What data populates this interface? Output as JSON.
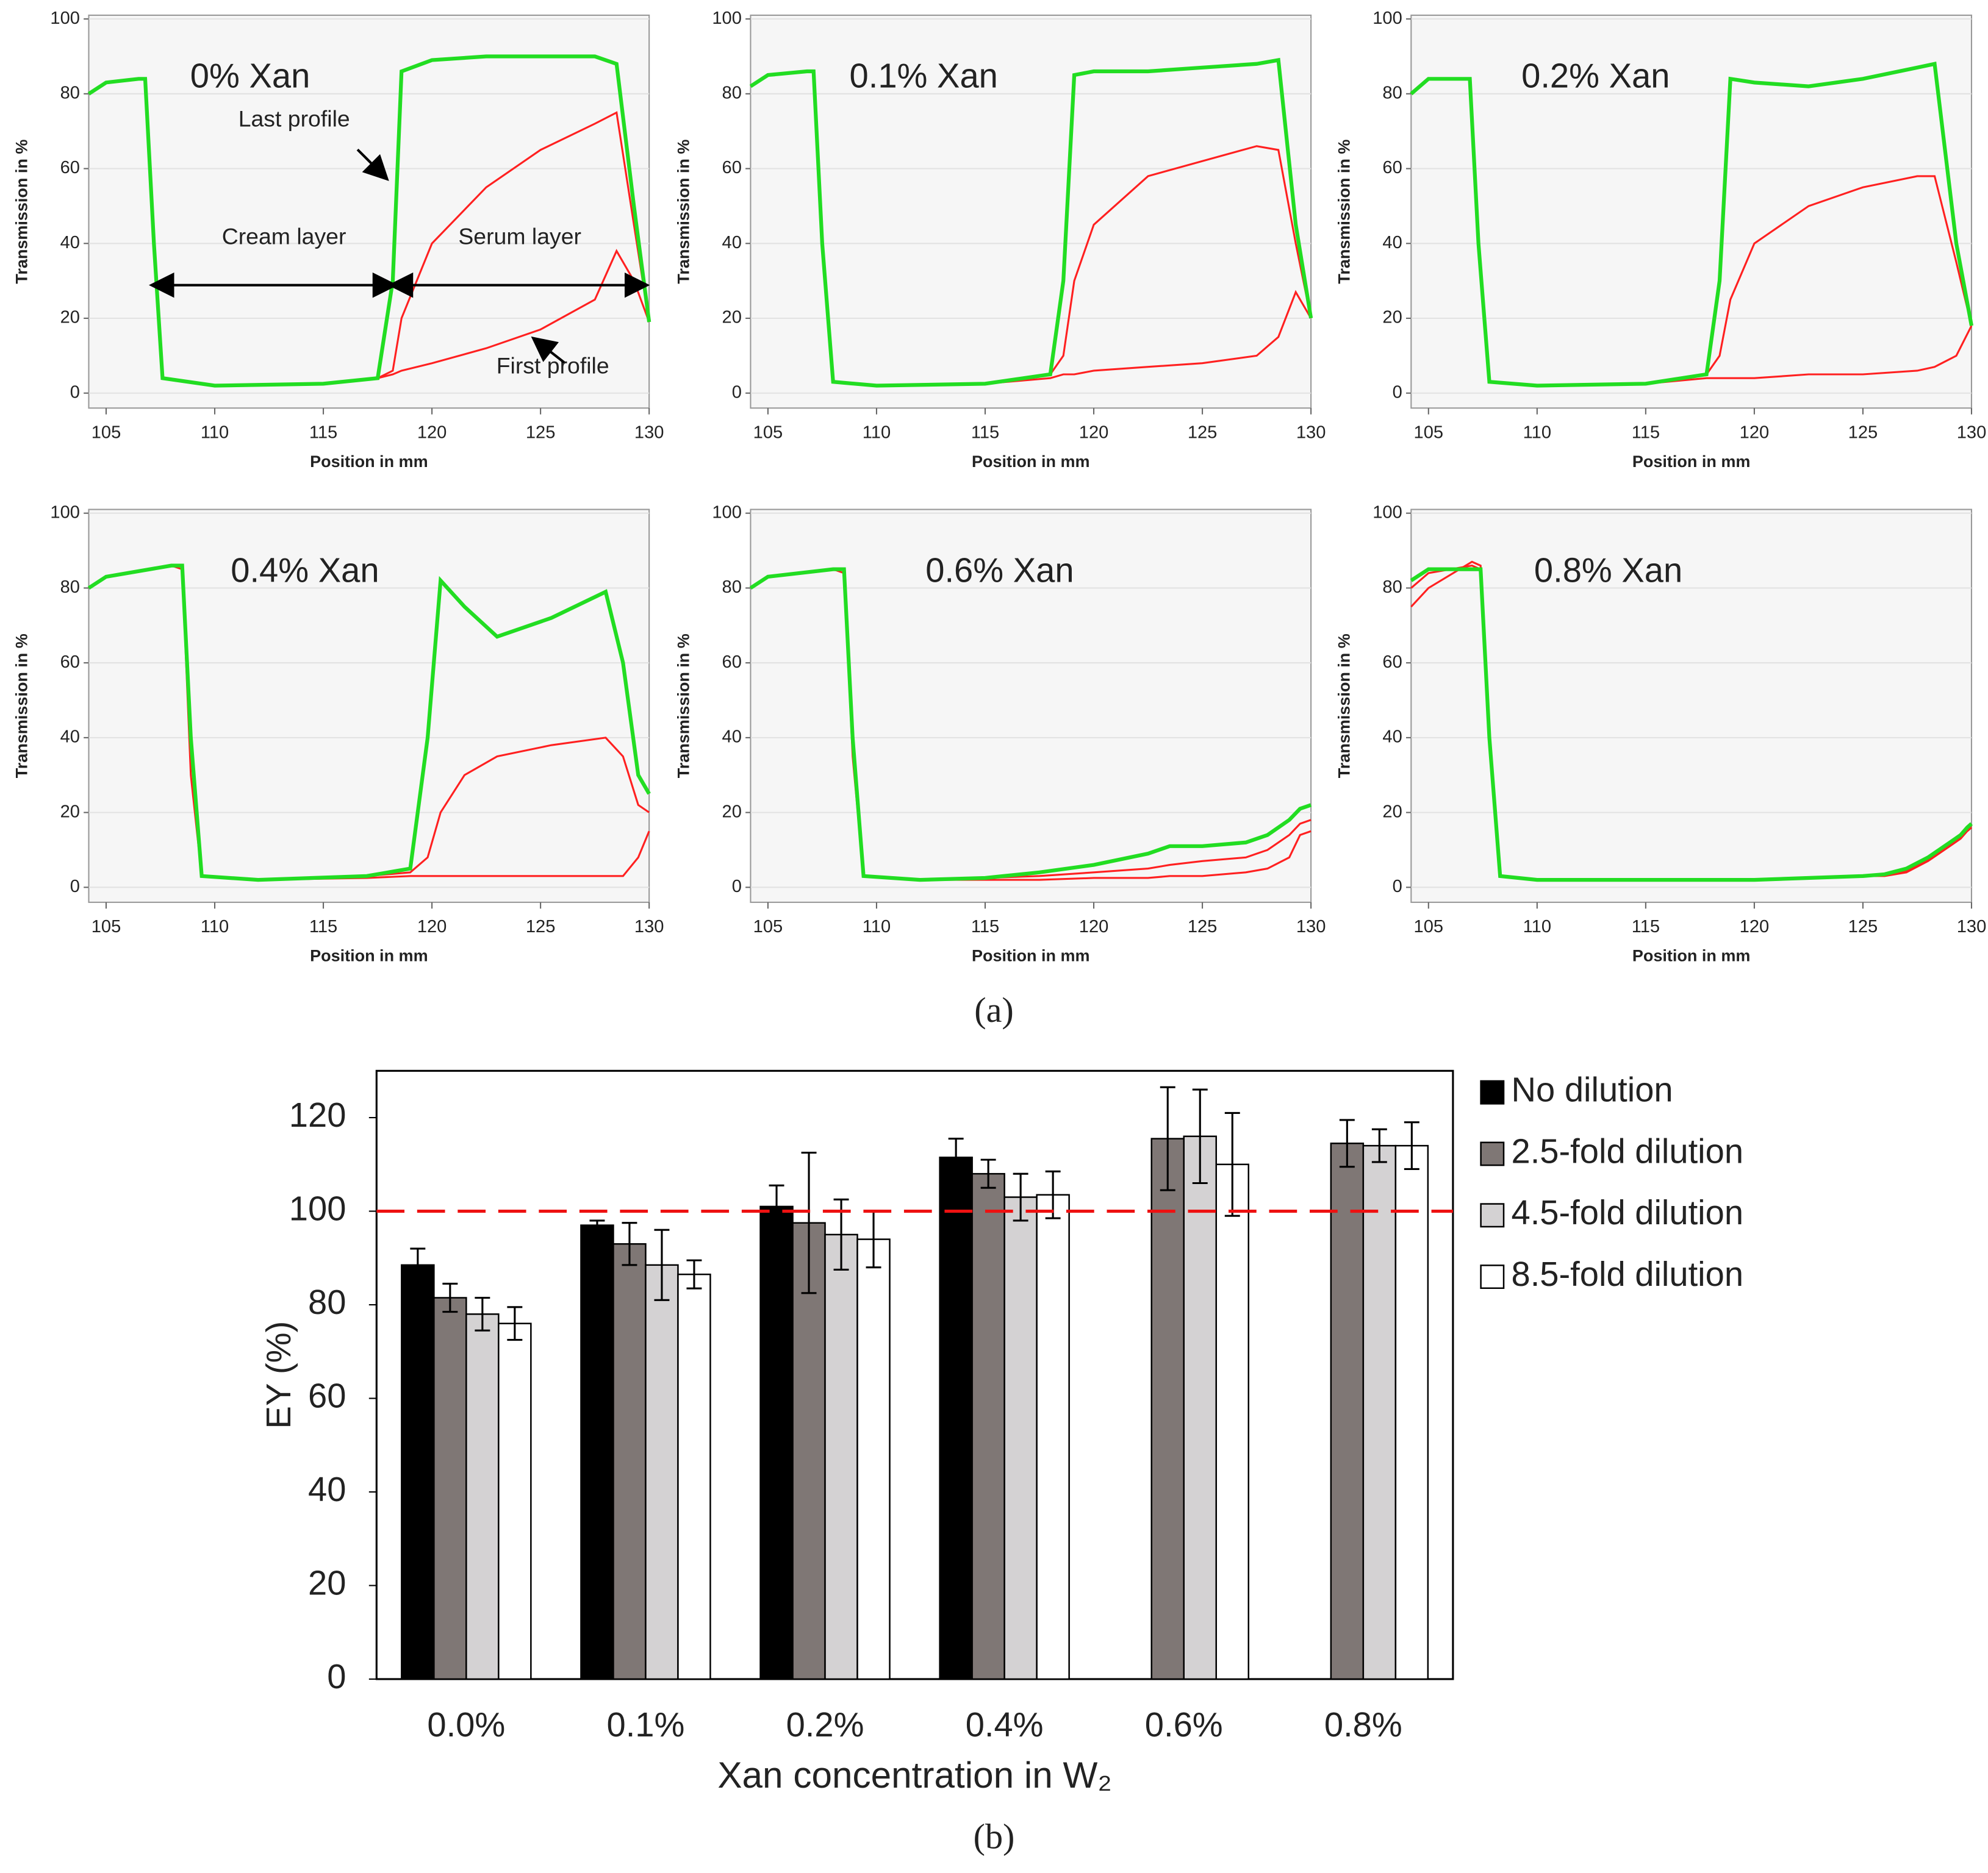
{
  "panel_labels": [
    "(a)",
    "(b)"
  ],
  "chart_data": [
    {
      "type": "line",
      "title": "0% Xan",
      "xlabel": "Position in mm",
      "ylabel": "Transmission in %",
      "xlim": [
        104.2,
        130
      ],
      "xticks": [
        105,
        110,
        115,
        120,
        125,
        130
      ],
      "ylim": [
        -4,
        101
      ],
      "yticks": [
        0,
        20,
        40,
        60,
        80,
        100
      ],
      "grid": true,
      "annotations": [
        "Last profile",
        "Cream layer",
        "Serum layer",
        "First profile"
      ],
      "x": [
        104.2,
        105,
        106.5,
        106.8,
        107.2,
        107.6,
        110,
        115,
        117.5,
        118.2,
        118.6,
        120,
        122.5,
        125,
        127.5,
        128.5,
        129.3,
        130
      ],
      "series": [
        {
          "color": "#ff2020",
          "values": [
            80,
            83,
            84,
            84,
            40,
            4,
            2,
            2.5,
            4,
            5,
            6,
            8,
            12,
            17,
            25,
            38,
            30,
            19
          ]
        },
        {
          "color": "#ff2020",
          "values": [
            80,
            83,
            84,
            84,
            40,
            4,
            2,
            2.5,
            4,
            6,
            20,
            40,
            55,
            65,
            72,
            75,
            45,
            19
          ]
        },
        {
          "color": "#22dd22",
          "values": [
            80,
            83,
            84,
            84,
            40,
            4,
            2,
            2.5,
            4,
            30,
            86,
            89,
            90,
            90,
            90,
            88,
            50,
            19
          ]
        }
      ]
    },
    {
      "type": "line",
      "title": "0.1% Xan",
      "xlabel": "Position in mm",
      "ylabel": "Transmission in %",
      "xlim": [
        104.2,
        130
      ],
      "xticks": [
        105,
        110,
        115,
        120,
        125,
        130
      ],
      "ylim": [
        -4,
        101
      ],
      "yticks": [
        0,
        20,
        40,
        60,
        80,
        100
      ],
      "grid": true,
      "x": [
        104.2,
        105,
        106.8,
        107.1,
        107.5,
        108,
        110,
        115,
        118,
        118.6,
        119.1,
        120,
        122.5,
        125,
        127.5,
        128.5,
        129.3,
        130
      ],
      "series": [
        {
          "color": "#ff2020",
          "values": [
            82,
            85,
            86,
            86,
            40,
            3,
            2,
            2.5,
            4,
            5,
            5,
            6,
            7,
            8,
            10,
            15,
            27,
            20
          ]
        },
        {
          "color": "#ff2020",
          "values": [
            82,
            85,
            86,
            86,
            40,
            3,
            2,
            2.5,
            5,
            10,
            30,
            45,
            58,
            62,
            66,
            65,
            40,
            20
          ]
        },
        {
          "color": "#22dd22",
          "values": [
            82,
            85,
            86,
            86,
            40,
            3,
            2,
            2.5,
            5,
            30,
            85,
            86,
            86,
            87,
            88,
            89,
            45,
            20
          ]
        }
      ]
    },
    {
      "type": "line",
      "title": "0.2% Xan",
      "xlabel": "Position in mm",
      "ylabel": "Transmission in %",
      "xlim": [
        104.2,
        130
      ],
      "xticks": [
        105,
        110,
        115,
        120,
        125,
        130
      ],
      "ylim": [
        -4,
        101
      ],
      "yticks": [
        0,
        20,
        40,
        60,
        80,
        100
      ],
      "grid": true,
      "x": [
        104.2,
        105,
        106.6,
        106.9,
        107.3,
        107.8,
        110,
        115,
        117.8,
        118.4,
        118.9,
        120,
        122.5,
        125,
        127.5,
        128.3,
        129.3,
        130
      ],
      "series": [
        {
          "color": "#ff2020",
          "values": [
            80,
            84,
            84,
            84,
            40,
            3,
            2,
            2.5,
            4,
            4,
            4,
            4,
            5,
            5,
            6,
            7,
            10,
            18
          ]
        },
        {
          "color": "#ff2020",
          "values": [
            80,
            84,
            84,
            84,
            40,
            3,
            2,
            2.5,
            5,
            10,
            25,
            40,
            50,
            55,
            58,
            58,
            35,
            18
          ]
        },
        {
          "color": "#22dd22",
          "values": [
            80,
            84,
            84,
            84,
            40,
            3,
            2,
            2.5,
            5,
            30,
            84,
            83,
            82,
            84,
            87,
            88,
            40,
            18
          ]
        }
      ]
    },
    {
      "type": "line",
      "title": "0.4% Xan",
      "xlabel": "Position in mm",
      "ylabel": "Transmission in %",
      "xlim": [
        104.2,
        130
      ],
      "xticks": [
        105,
        110,
        115,
        120,
        125,
        130
      ],
      "ylim": [
        -4,
        101
      ],
      "yticks": [
        0,
        20,
        40,
        60,
        80,
        100
      ],
      "grid": true,
      "x": [
        104.2,
        105,
        108,
        108.5,
        108.9,
        109.4,
        112,
        117,
        119,
        119.8,
        120.4,
        121.5,
        123,
        125.5,
        128,
        128.8,
        129.5,
        130
      ],
      "series": [
        {
          "color": "#ff2020",
          "values": [
            80,
            83,
            86,
            85,
            30,
            3,
            2,
            2.5,
            3,
            3,
            3,
            3,
            3,
            3,
            3,
            3,
            8,
            15
          ]
        },
        {
          "color": "#ff2020",
          "values": [
            80,
            83,
            86,
            86,
            40,
            3,
            2,
            3,
            4,
            8,
            20,
            30,
            35,
            38,
            40,
            35,
            22,
            20
          ]
        },
        {
          "color": "#22dd22",
          "values": [
            80,
            83,
            86,
            86,
            40,
            3,
            2,
            3,
            5,
            40,
            82,
            75,
            67,
            72,
            79,
            60,
            30,
            25
          ]
        }
      ]
    },
    {
      "type": "line",
      "title": "0.6% Xan",
      "xlabel": "Position in mm",
      "ylabel": "Transmission in %",
      "xlim": [
        104.2,
        130
      ],
      "xticks": [
        105,
        110,
        115,
        120,
        125,
        130
      ],
      "ylim": [
        -4,
        101
      ],
      "yticks": [
        0,
        20,
        40,
        60,
        80,
        100
      ],
      "grid": true,
      "x": [
        104.2,
        105,
        108,
        108.5,
        108.9,
        109.4,
        112,
        115,
        117.5,
        120,
        122.5,
        123.5,
        125,
        127,
        128,
        129,
        129.5,
        130
      ],
      "series": [
        {
          "color": "#ff2020",
          "values": [
            80,
            83,
            85,
            84,
            35,
            3,
            2,
            2,
            2,
            2.5,
            2.5,
            3,
            3,
            4,
            5,
            8,
            14,
            15
          ]
        },
        {
          "color": "#ff2020",
          "values": [
            80,
            83,
            85,
            85,
            40,
            3,
            2,
            2.5,
            3,
            4,
            5,
            6,
            7,
            8,
            10,
            14,
            17,
            18
          ]
        },
        {
          "color": "#22dd22",
          "values": [
            80,
            83,
            85,
            85,
            40,
            3,
            2,
            2.5,
            4,
            6,
            9,
            11,
            11,
            12,
            14,
            18,
            21,
            22
          ]
        }
      ]
    },
    {
      "type": "line",
      "title": "0.8% Xan",
      "xlabel": "Position in mm",
      "ylabel": "Transmission in %",
      "xlim": [
        104.2,
        130
      ],
      "xticks": [
        105,
        110,
        115,
        120,
        125,
        130
      ],
      "ylim": [
        -4,
        101
      ],
      "yticks": [
        0,
        20,
        40,
        60,
        80,
        100
      ],
      "grid": true,
      "x": [
        104.2,
        105,
        107,
        107.4,
        107.8,
        108.3,
        110,
        115,
        120,
        125,
        126,
        127,
        128,
        128.5,
        129,
        129.5,
        129.8,
        130
      ],
      "series": [
        {
          "color": "#ff2020",
          "values": [
            75,
            80,
            87,
            86,
            40,
            3,
            2,
            2,
            2,
            3,
            3,
            4,
            7,
            9,
            11,
            13,
            15,
            16
          ]
        },
        {
          "color": "#ff2020",
          "values": [
            80,
            84,
            86,
            85,
            40,
            3,
            2,
            2,
            2,
            3,
            3.2,
            4.5,
            7.5,
            9.5,
            11.5,
            13.5,
            15.5,
            16.5
          ]
        },
        {
          "color": "#22dd22",
          "values": [
            82,
            85,
            85,
            85,
            40,
            3,
            2,
            2,
            2,
            3,
            3.5,
            5,
            8,
            10,
            12,
            14,
            16,
            17
          ]
        }
      ]
    },
    {
      "type": "bar",
      "xlabel": "Xan concentration in W₂",
      "ylabel": "EY (%)",
      "categories": [
        "0.0%",
        "0.1%",
        "0.2%",
        "0.4%",
        "0.6%",
        "0.8%"
      ],
      "ylim": [
        0,
        130
      ],
      "yticks": [
        0,
        20,
        40,
        60,
        80,
        100,
        120
      ],
      "legend": "right",
      "reference_line": {
        "value": 100,
        "color": "#ee1111"
      },
      "series": [
        {
          "name": "No dilution",
          "color": "#000000",
          "values": [
            88.5,
            97,
            101,
            111.5,
            null,
            null
          ],
          "errors": [
            3.5,
            1,
            4.5,
            4,
            null,
            null
          ]
        },
        {
          "name": "2.5-fold dilution",
          "color": "#7f7775",
          "values": [
            81.5,
            93,
            97.5,
            108,
            115.5,
            114.5
          ],
          "errors": [
            3,
            4.5,
            15,
            3,
            11,
            5
          ]
        },
        {
          "name": "4.5-fold dilution",
          "color": "#d4d2d3",
          "values": [
            78,
            88.5,
            95,
            103,
            116,
            114
          ],
          "errors": [
            3.5,
            7.5,
            7.5,
            5,
            10,
            3.5
          ]
        },
        {
          "name": "8.5-fold dilution",
          "color": "#ffffff",
          "values": [
            76,
            86.5,
            94,
            103.5,
            110,
            114
          ],
          "errors": [
            3.5,
            3,
            6,
            5,
            11,
            5
          ]
        }
      ]
    }
  ]
}
